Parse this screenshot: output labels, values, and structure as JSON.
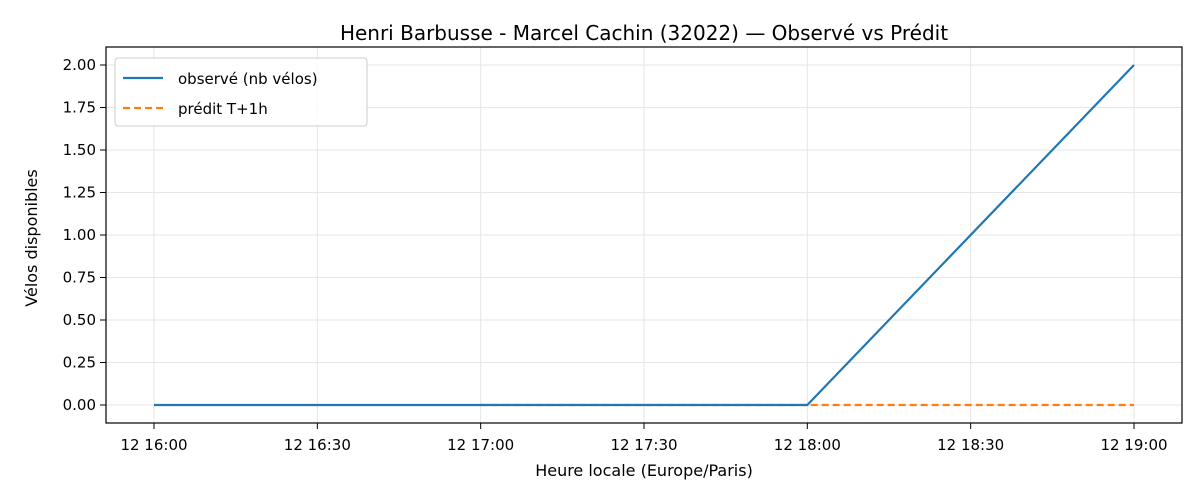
{
  "chart_data": {
    "type": "line",
    "title": "Henri Barbusse - Marcel Cachin (32022) — Observé vs Prédit",
    "xlabel": "Heure locale (Europe/Paris)",
    "ylabel": "Vélos disponibles",
    "x_ticks": [
      "12 16:00",
      "12 16:30",
      "12 17:00",
      "12 17:30",
      "12 18:00",
      "12 18:30",
      "12 19:00"
    ],
    "y_ticks": [
      "0.00",
      "0.25",
      "0.50",
      "0.75",
      "1.00",
      "1.25",
      "1.50",
      "1.75",
      "2.00"
    ],
    "xlim": [
      "16:00",
      "19:00"
    ],
    "ylim": [
      0,
      2
    ],
    "grid": true,
    "legend_position": "top-left",
    "series": [
      {
        "name": "observé (nb vélos)",
        "color": "#1f77b4",
        "style": "solid",
        "x": [
          "16:00",
          "17:00",
          "18:00",
          "19:00"
        ],
        "y": [
          0,
          0,
          0,
          2
        ]
      },
      {
        "name": "prédit T+1h",
        "color": "#ff7f0e",
        "style": "dashed",
        "x": [
          "17:00",
          "18:00",
          "19:00"
        ],
        "y": [
          0,
          0,
          0
        ]
      }
    ]
  }
}
